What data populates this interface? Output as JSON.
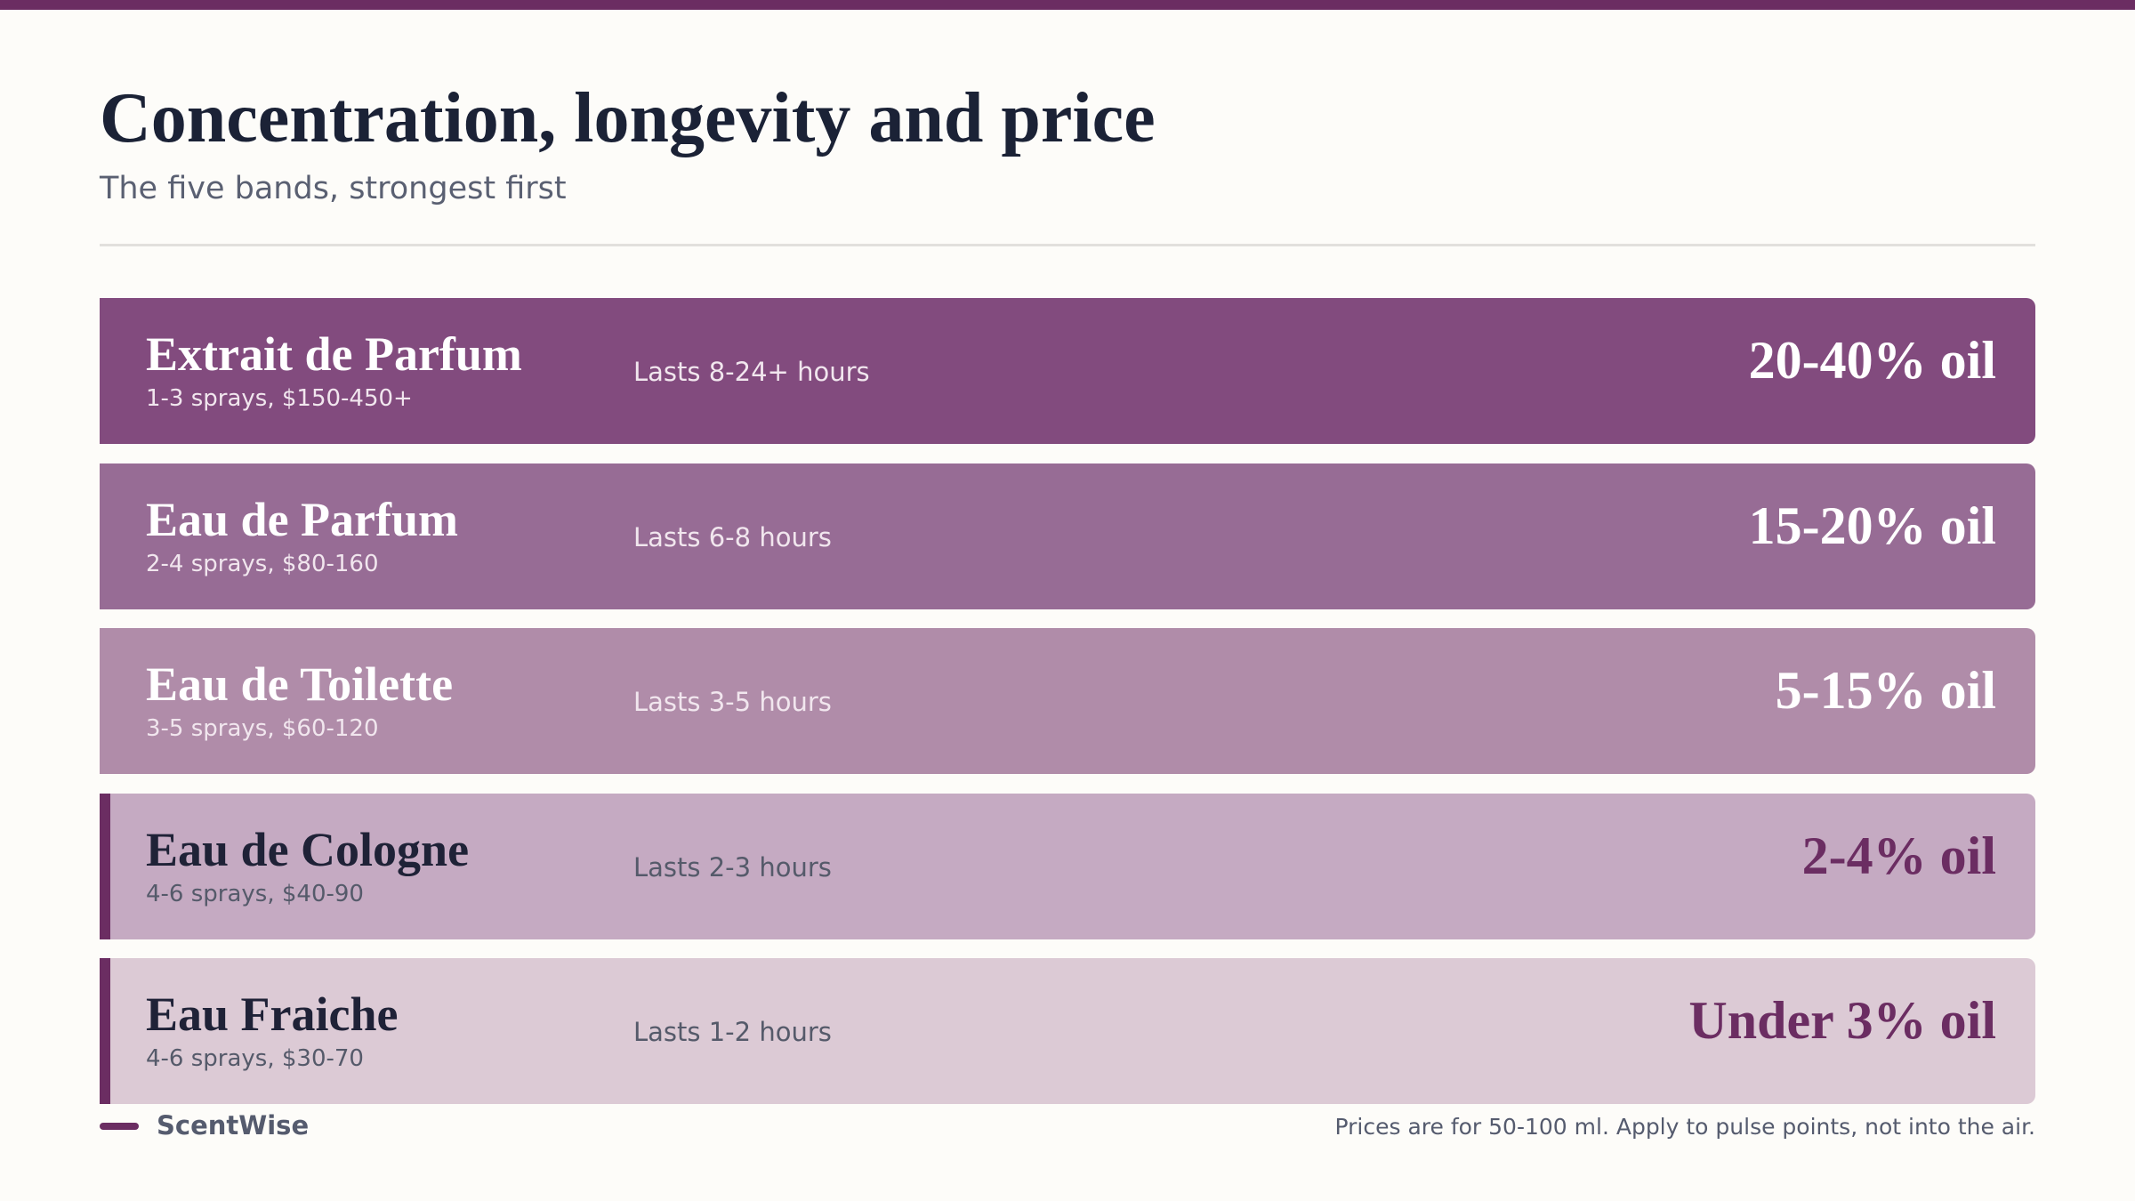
{
  "header": {
    "title": "Concentration, longevity and price",
    "subtitle": "The five bands, strongest first"
  },
  "rows": [
    {
      "name": "Extrait de Parfum",
      "detail": "1-3 sprays, $150-450+",
      "longevity": "Lasts 8-24+ hours",
      "concentration": "20-40% oil"
    },
    {
      "name": "Eau de Parfum",
      "detail": "2-4 sprays, $80-160",
      "longevity": "Lasts 6-8 hours",
      "concentration": "15-20% oil"
    },
    {
      "name": "Eau de Toilette",
      "detail": "3-5 sprays, $60-120",
      "longevity": "Lasts 3-5 hours",
      "concentration": "5-15% oil"
    },
    {
      "name": "Eau de Cologne",
      "detail": "4-6 sprays, $40-90",
      "longevity": "Lasts 2-3 hours",
      "concentration": "2-4% oil"
    },
    {
      "name": "Eau Fraiche",
      "detail": "4-6 sprays, $30-70",
      "longevity": "Lasts 1-2 hours",
      "concentration": "Under 3% oil"
    }
  ],
  "footer": {
    "brand": "ScentWise",
    "note": "Prices are for 50-100 ml. Apply to pulse points, not into the air."
  }
}
